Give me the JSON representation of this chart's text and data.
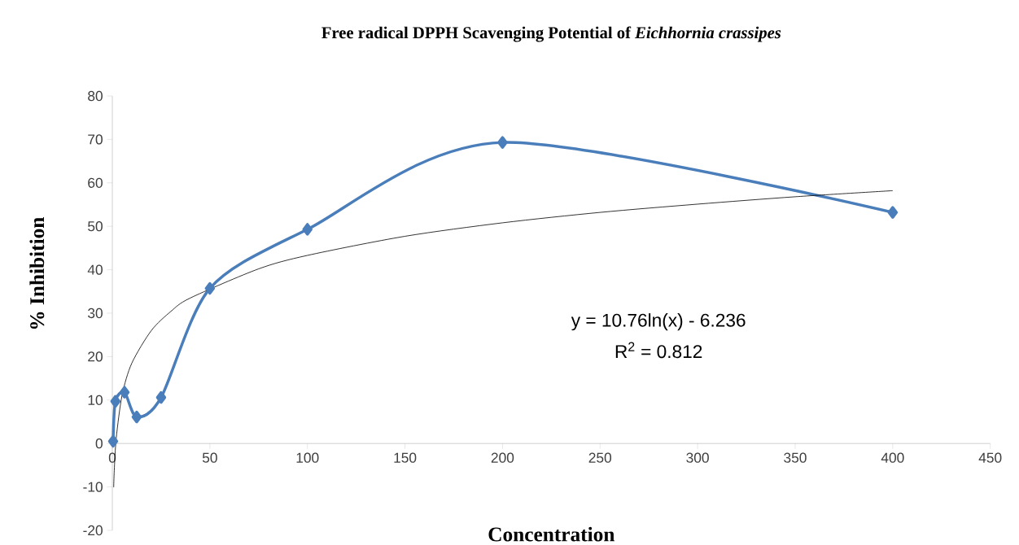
{
  "chart_data": {
    "type": "line",
    "title": "Free radical DPPH Scavenging Potential of *Eichhornia crassipes*",
    "xlabel": "Concentration",
    "ylabel": "% Inhibition",
    "annotations": [
      "y = 10.76ln(x) - 6.236",
      "R$^{2}$ = 0.812"
    ],
    "series": [
      {
        "color": "#4a7ebb",
        "marker": "diamond",
        "x": [
          0.4,
          1.6,
          6.25,
          12.5,
          25,
          50,
          100,
          200,
          400
        ],
        "values": [
          0.5,
          9.7,
          11.8,
          6.1,
          10.6,
          35.7,
          49.3,
          69.3,
          53.2
        ]
      },
      {
        "color": "#000000",
        "marker": "none",
        "x": [
          0.7,
          1,
          2,
          5,
          10,
          20,
          30,
          40,
          75,
          100,
          150,
          200,
          250,
          300,
          350,
          400
        ],
        "values": [
          -10.1,
          -6.2,
          1.2,
          11.1,
          18.5,
          26.0,
          30.4,
          33.5,
          40.2,
          43.3,
          47.7,
          50.8,
          53.2,
          55.1,
          56.8,
          58.2
        ]
      }
    ],
    "xlim": [
      0,
      450
    ],
    "xticks": [
      0,
      50,
      100,
      150,
      200,
      250,
      300,
      350,
      400,
      450
    ],
    "ylim": [
      -20,
      80
    ],
    "yticks": [
      -20,
      -10,
      0,
      10,
      20,
      30,
      40,
      50,
      60,
      70,
      80
    ],
    "grid": false
  }
}
